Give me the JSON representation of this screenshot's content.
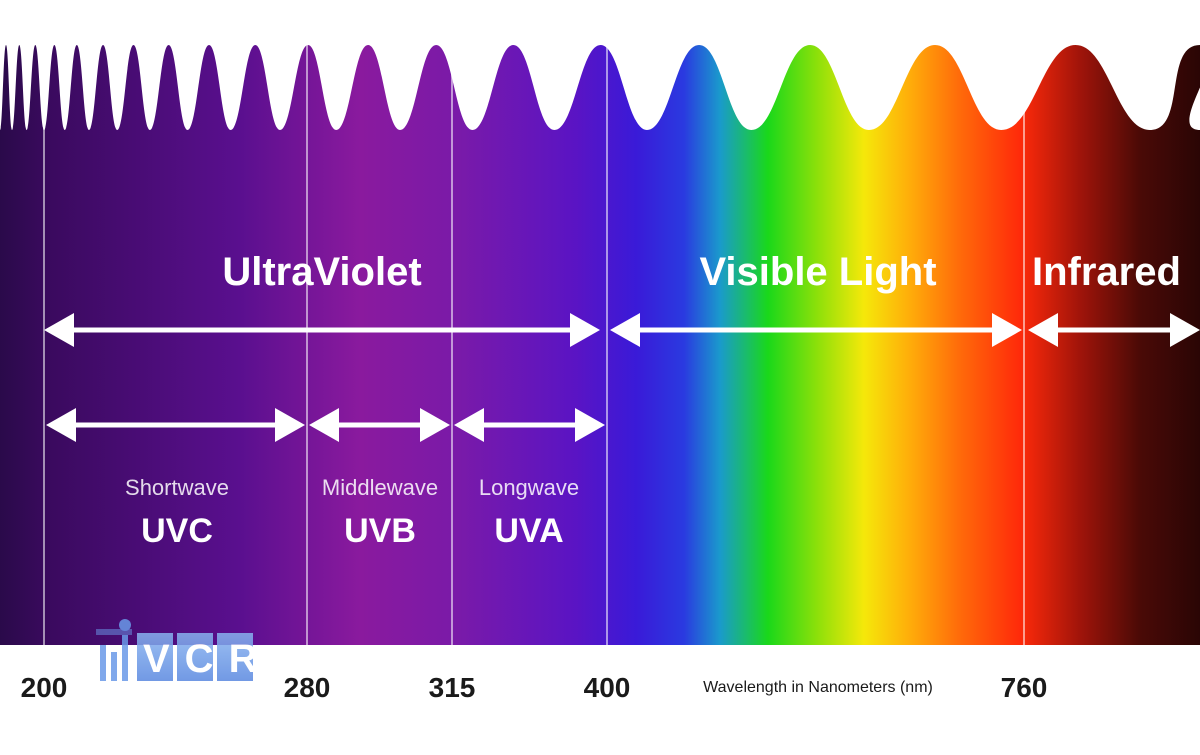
{
  "regions": {
    "ultraviolet": "UltraViolet",
    "visible": "Visible Light",
    "infrared": "Infrared"
  },
  "bands": [
    {
      "sublabel": "Shortwave",
      "label": "UVC"
    },
    {
      "sublabel": "Middlewave",
      "label": "UVB"
    },
    {
      "sublabel": "Longwave",
      "label": "UVA"
    }
  ],
  "ticks": [
    "200",
    "280",
    "315",
    "400",
    "760"
  ],
  "axis_caption": "Wavelength in Nanometers (nm)",
  "logo": {
    "text": "VCR"
  },
  "colors": {
    "uv_deep": "#2a0a4a",
    "uv_purple": "#5a0f8f",
    "uvb_magenta": "#8a1a9e",
    "uva_violet": "#6a1ab8",
    "visible_blue": "#3a1ad8",
    "green": "#1ad81a",
    "yellow": "#f5e80a",
    "orange": "#ff8a0a",
    "red": "#ff2a0a",
    "infrared_dark": "#2a0505",
    "arrow": "#ffffff",
    "logo": "#6a9ae8"
  }
}
